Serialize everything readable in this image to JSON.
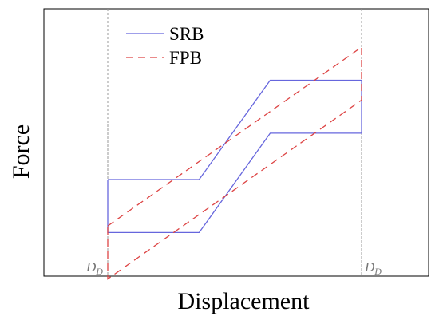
{
  "chart_data": {
    "type": "line",
    "xlabel": "Displacement",
    "ylabel": "Force",
    "xlim": [
      -1,
      1
    ],
    "ylim": [
      -1,
      1
    ],
    "grid": false,
    "legend_placement": "top-left",
    "reference_lines": [
      {
        "x": -1,
        "label": "D",
        "label_subscript": "D",
        "color": "#999999",
        "style": "dashed"
      },
      {
        "x": 1,
        "label": "D",
        "label_subscript": "D",
        "color": "#999999",
        "style": "dashed"
      }
    ],
    "series": [
      {
        "name": "SRB",
        "color": "#6666dd",
        "style": "solid",
        "points": [
          [
            -1,
            0.0
          ],
          [
            -0.28,
            0.0
          ],
          [
            0.28,
            0.75
          ],
          [
            1,
            0.75
          ],
          [
            1,
            0.35
          ],
          [
            0.28,
            0.35
          ],
          [
            -0.28,
            -0.4
          ],
          [
            -1,
            -0.4
          ],
          [
            -1,
            0.0
          ]
        ]
      },
      {
        "name": "FPB",
        "color": "#dd4444",
        "style": "dashed",
        "points": [
          [
            -1,
            -0.35
          ],
          [
            1,
            1.0
          ],
          [
            1,
            0.6
          ],
          [
            -1,
            -0.75
          ],
          [
            -1,
            -0.35
          ]
        ]
      }
    ]
  }
}
